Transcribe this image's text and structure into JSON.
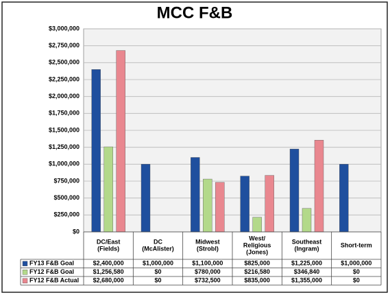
{
  "chart_data": {
    "type": "bar",
    "title": "MCC F&B",
    "categories": [
      [
        "DC/East",
        "(Fields)"
      ],
      [
        "DC",
        "(McAlister)"
      ],
      [
        "Midwest",
        "(Strobl)"
      ],
      [
        "West/",
        "Religious",
        "(Jones)"
      ],
      [
        "Southeast",
        "(Ingram)"
      ],
      [
        "Short-term"
      ]
    ],
    "series": [
      {
        "name": "FY13 F&B Goal",
        "color": "#1f4f9e",
        "values": [
          2400000,
          1000000,
          1100000,
          825000,
          1225000,
          1000000
        ],
        "value_labels": [
          "$2,400,000",
          "$1,000,000",
          "$1,100,000",
          "$825,000",
          "$1,225,000",
          "$1,000,000"
        ]
      },
      {
        "name": "FY12 F&B Goal",
        "color": "#b3d98a",
        "values": [
          1256580,
          0,
          780000,
          216580,
          346840,
          0
        ],
        "value_labels": [
          "$1,256,580",
          "$0",
          "$780,000",
          "$216,580",
          "$346,840",
          "$0"
        ]
      },
      {
        "name": "FY12 F&B Actual",
        "color": "#e9878f",
        "values": [
          2680000,
          0,
          732500,
          835000,
          1355000,
          0
        ],
        "value_labels": [
          "$2,680,000",
          "$0",
          "$732,500",
          "$835,000",
          "$1,355,000",
          "$0"
        ]
      }
    ],
    "ylim": [
      0,
      3000000
    ],
    "yticks": [
      {
        "value": 0,
        "label": "$0"
      },
      {
        "value": 250000,
        "label": "$250,000"
      },
      {
        "value": 500000,
        "label": "$500,000"
      },
      {
        "value": 750000,
        "label": "$750,000"
      },
      {
        "value": 1000000,
        "label": "$1,000,000"
      },
      {
        "value": 1250000,
        "label": "$1,250,000"
      },
      {
        "value": 1500000,
        "label": "$1,500,000"
      },
      {
        "value": 1750000,
        "label": "$1,750,000"
      },
      {
        "value": 2000000,
        "label": "$2,000,000"
      },
      {
        "value": 2250000,
        "label": "$2,250,000"
      },
      {
        "value": 2500000,
        "label": "$2,500,000"
      },
      {
        "value": 2750000,
        "label": "$2,750,000"
      },
      {
        "value": 3000000,
        "label": "$3,000,000"
      }
    ],
    "grid": true
  }
}
